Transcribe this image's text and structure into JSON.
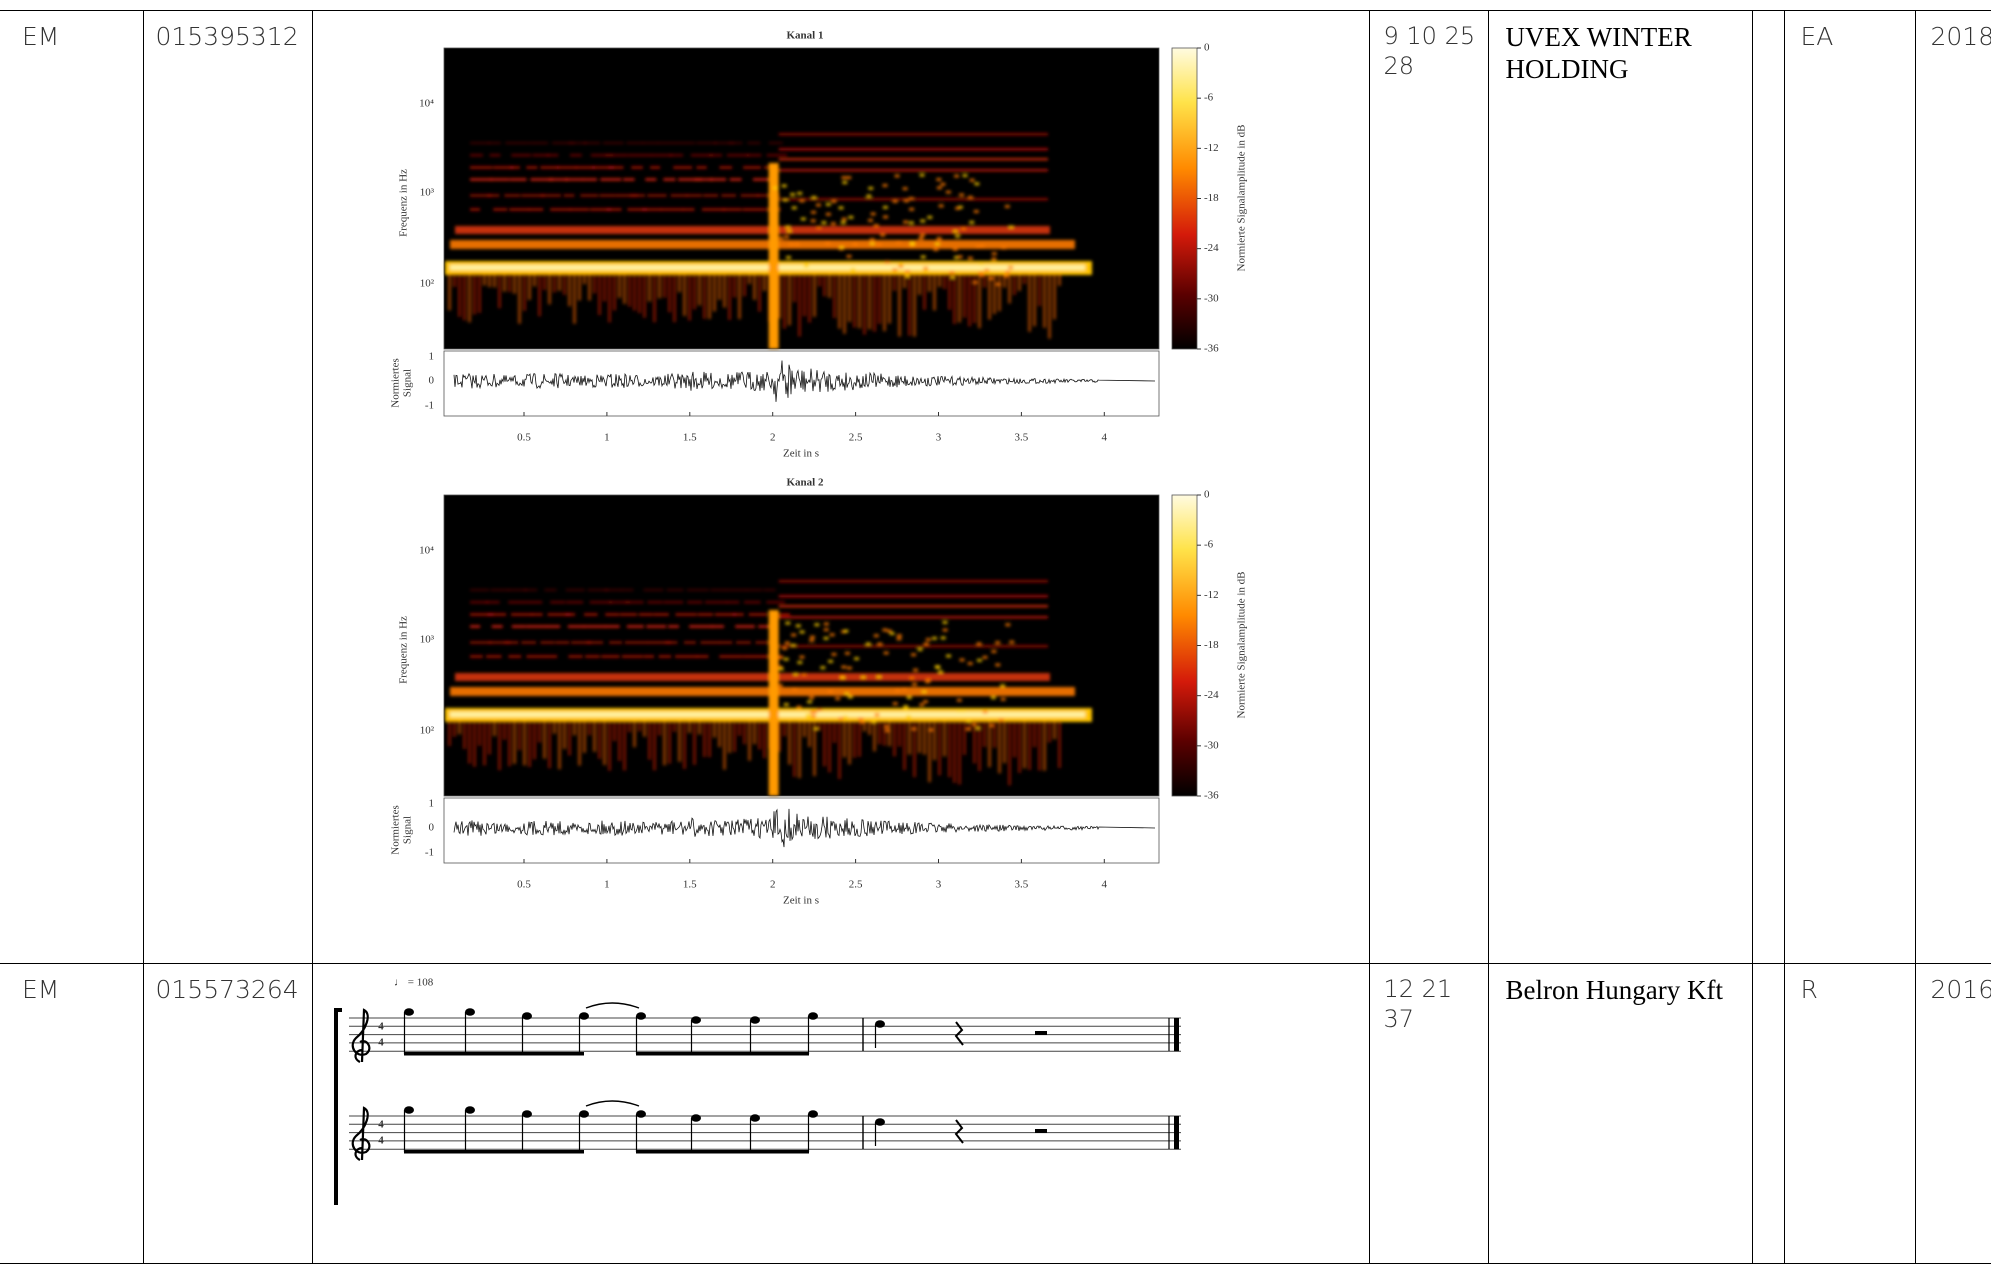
{
  "table": {
    "rows": [
      {
        "kind": "EM",
        "number": "015395312",
        "classes": "9 10 25 28",
        "owner": "UVEX WINTER HOLDING",
        "status": "EA",
        "year": "2018",
        "figure": {
          "panels": [
            {
              "title": "Kanal 1",
              "freq_label": "Frequenz in Hz",
              "freq_ticks": [
                "10⁴",
                "10³",
                "10²"
              ],
              "colorbar_label": "Normierte Signalamplitude in dB",
              "colorbar_ticks": [
                "0",
                "-6",
                "-12",
                "-18",
                "-24",
                "-30",
                "-36"
              ],
              "signal_label": [
                "Normiertes",
                "Signal"
              ],
              "signal_ticks": [
                "1",
                "0",
                "-1"
              ],
              "time_ticks": [
                "0.5",
                "1",
                "1.5",
                "2",
                "2.5",
                "3",
                "3.5",
                "4"
              ],
              "time_label": "Zeit in s"
            },
            {
              "title": "Kanal 2",
              "freq_label": "Frequenz in Hz",
              "freq_ticks": [
                "10⁴",
                "10³",
                "10²"
              ],
              "colorbar_label": "Normierte Signalamplitude in dB",
              "colorbar_ticks": [
                "0",
                "-6",
                "-12",
                "-18",
                "-24",
                "-30",
                "-36"
              ],
              "signal_label": [
                "Normiertes",
                "Signal"
              ],
              "signal_ticks": [
                "1",
                "0",
                "-1"
              ],
              "time_ticks": [
                "0.5",
                "1",
                "1.5",
                "2",
                "2.5",
                "3",
                "3.5",
                "4"
              ],
              "time_label": "Zeit in s"
            }
          ]
        }
      },
      {
        "kind": "EM",
        "number": "015573264",
        "classes": "12 21 37",
        "owner": "Belron Hungary Kft",
        "status": "R",
        "year": "2016",
        "figure": {
          "tempo": "♩ = 108",
          "time_signature": [
            "4",
            "4"
          ]
        }
      }
    ]
  }
}
